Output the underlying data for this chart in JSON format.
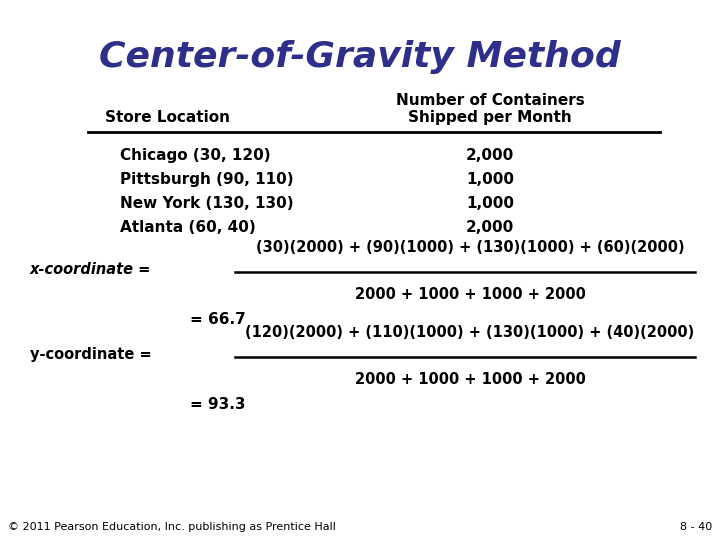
{
  "title": "Center-of-Gravity Method",
  "title_color": "#2E2E8B",
  "title_fontsize": 26,
  "bg_color": "#FFFFFF",
  "table_header_col1": "Store Location",
  "table_header_col2_line1": "Number of Containers",
  "table_header_col2_line2": "Shipped per Month",
  "table_rows": [
    [
      "Chicago (30, 120)",
      "2,000"
    ],
    [
      "Pittsburgh (90, 110)",
      "1,000"
    ],
    [
      "New York (130, 130)",
      "1,000"
    ],
    [
      "Atlanta (60, 40)",
      "2,000"
    ]
  ],
  "x_coord_label": "x-coordinate =",
  "x_coord_numerator": "(30)(2000) + (90)(1000) + (130)(1000) + (60)(2000)",
  "x_coord_denominator": "2000 + 1000 + 1000 + 2000",
  "x_coord_result": "= 66.7",
  "y_coord_label": "y-coordinate =",
  "y_coord_numerator": "(120)(2000) + (110)(1000) + (130)(1000) + (40)(2000)",
  "y_coord_denominator": "2000 + 1000 + 1000 + 2000",
  "y_coord_result": "= 93.3",
  "footer_left": "© 2011 Pearson Education, Inc. publishing as Prentice Hall",
  "footer_right": "8 - 40",
  "footer_fontsize": 8,
  "header_fontsize": 11,
  "table_fontsize": 11,
  "formula_fontsize": 10.5,
  "label_fontsize": 10.5,
  "result_fontsize": 11
}
